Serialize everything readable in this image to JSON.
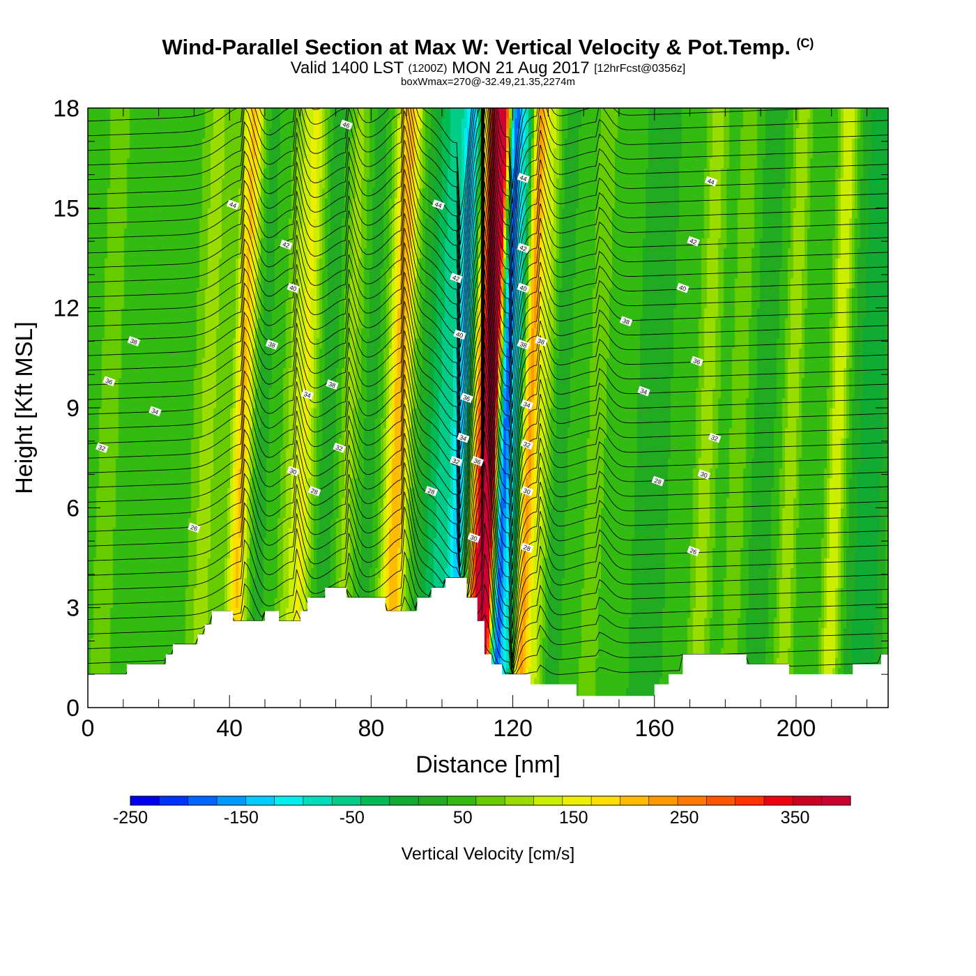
{
  "title": {
    "main": "Wind-Parallel Section at Max W: Vertical Velocity & Pot.Temp.",
    "copyright": "(C)",
    "valid_prefix": "Valid 1400 LST",
    "zulu": "(1200Z)",
    "date": "MON 21 Aug 2017",
    "forecast": "[12hrFcst@0356z]",
    "box": "boxWmax=270@-32.49,21.35,2274m"
  },
  "chart_data": {
    "type": "heatmap",
    "title": "Wind-Parallel Section at Max W: Vertical Velocity & Pot.Temp.",
    "xlabel": "Distance [nm]",
    "ylabel": "Height [Kft MSL]",
    "xlim": [
      0,
      226
    ],
    "ylim": [
      0,
      18
    ],
    "x_ticks": [
      0,
      40,
      80,
      120,
      160,
      200
    ],
    "x_tick_labels": [
      "0",
      "40",
      "80",
      "120",
      "160",
      "200"
    ],
    "y_ticks": [
      0,
      3,
      6,
      9,
      12,
      15,
      18
    ],
    "y_tick_labels": [
      "0",
      "3",
      "6",
      "9",
      "12",
      "15",
      "18"
    ],
    "colorbar": {
      "label": "Vertical Velocity [cm/s]",
      "min": -250,
      "max": 400,
      "step": 25,
      "tick_values": [
        -250,
        -150,
        -50,
        50,
        150,
        250,
        350
      ],
      "tick_labels": [
        "-250",
        "-150",
        "-50",
        "50",
        "150",
        "250",
        "350"
      ],
      "colors": [
        "#0000ee",
        "#0033ff",
        "#0066ff",
        "#0099ff",
        "#00ccff",
        "#00eeee",
        "#00ddbb",
        "#00cc88",
        "#00bb55",
        "#11aa33",
        "#22aa22",
        "#33bb11",
        "#66cc00",
        "#99dd00",
        "#ccee00",
        "#eeee00",
        "#ffdd00",
        "#ffbb00",
        "#ff9900",
        "#ff7700",
        "#ff5500",
        "#ff3300",
        "#ee0011",
        "#cc0022",
        "#cc0033"
      ]
    },
    "terrain_kft": [
      [
        0,
        1.0
      ],
      [
        11,
        1.0
      ],
      [
        11,
        1.3
      ],
      [
        22,
        1.3
      ],
      [
        22,
        1.6
      ],
      [
        24,
        1.6
      ],
      [
        24,
        1.9
      ],
      [
        31,
        1.9
      ],
      [
        31,
        2.2
      ],
      [
        33,
        2.2
      ],
      [
        33,
        2.5
      ],
      [
        35,
        2.5
      ],
      [
        35,
        2.9
      ],
      [
        41,
        2.9
      ],
      [
        41,
        2.6
      ],
      [
        50,
        2.6
      ],
      [
        50,
        2.9
      ],
      [
        54,
        2.9
      ],
      [
        54,
        2.6
      ],
      [
        60,
        2.6
      ],
      [
        60,
        2.9
      ],
      [
        62,
        2.9
      ],
      [
        62,
        3.3
      ],
      [
        67,
        3.3
      ],
      [
        67,
        3.6
      ],
      [
        73,
        3.6
      ],
      [
        73,
        3.3
      ],
      [
        84,
        3.3
      ],
      [
        84,
        2.9
      ],
      [
        93,
        2.9
      ],
      [
        93,
        3.3
      ],
      [
        97,
        3.3
      ],
      [
        97,
        3.6
      ],
      [
        101,
        3.6
      ],
      [
        101,
        3.9
      ],
      [
        107,
        3.9
      ],
      [
        107,
        3.3
      ],
      [
        110,
        3.3
      ],
      [
        110,
        2.6
      ],
      [
        112,
        2.6
      ],
      [
        112,
        1.6
      ],
      [
        114,
        1.6
      ],
      [
        114,
        1.3
      ],
      [
        117,
        1.3
      ],
      [
        117,
        1.0
      ],
      [
        125,
        1.0
      ],
      [
        125,
        0.7
      ],
      [
        138,
        0.7
      ],
      [
        138,
        0.35
      ],
      [
        160,
        0.35
      ],
      [
        160,
        0.7
      ],
      [
        164,
        0.7
      ],
      [
        164,
        1.0
      ],
      [
        168,
        1.0
      ],
      [
        168,
        1.6
      ],
      [
        186,
        1.6
      ],
      [
        186,
        1.3
      ],
      [
        198,
        1.3
      ],
      [
        198,
        1.0
      ],
      [
        216,
        1.0
      ],
      [
        216,
        1.3
      ],
      [
        224,
        1.3
      ],
      [
        224,
        1.6
      ],
      [
        226,
        1.6
      ]
    ],
    "w_bands": [
      {
        "x": 5,
        "w": 20,
        "width": 10
      },
      {
        "x": 18,
        "w": 10,
        "width": 8
      },
      {
        "x": 34,
        "w": 55,
        "width": 4
      },
      {
        "x": 44,
        "w": 150,
        "width": 3
      },
      {
        "x": 48,
        "w": -20,
        "width": 3
      },
      {
        "x": 58,
        "w": 50,
        "width": 3
      },
      {
        "x": 62,
        "w": 90,
        "width": 3
      },
      {
        "x": 68,
        "w": -20,
        "width": 4
      },
      {
        "x": 74,
        "w": 55,
        "width": 3
      },
      {
        "x": 80,
        "w": -15,
        "width": 3
      },
      {
        "x": 88,
        "w": 165,
        "width": 3.5
      },
      {
        "x": 94,
        "w": -10,
        "width": 3
      },
      {
        "x": 100,
        "w": -80,
        "width": 4
      },
      {
        "x": 106,
        "w": -170,
        "width": 3
      },
      {
        "x": 111,
        "w": 200,
        "width": 3
      },
      {
        "x": 114,
        "w": 370,
        "width": 2.2
      },
      {
        "x": 118,
        "w": -220,
        "width": 1.8
      },
      {
        "x": 121,
        "w": -110,
        "width": 1.8
      },
      {
        "x": 125,
        "w": 170,
        "width": 2.2
      },
      {
        "x": 129,
        "w": 70,
        "width": 2.5
      },
      {
        "x": 133,
        "w": -20,
        "width": 3
      },
      {
        "x": 144,
        "w": 25,
        "width": 5
      },
      {
        "x": 160,
        "w": -20,
        "width": 4
      },
      {
        "x": 175,
        "w": 60,
        "width": 3
      },
      {
        "x": 184,
        "w": 35,
        "width": 3
      },
      {
        "x": 191,
        "w": -20,
        "width": 3
      },
      {
        "x": 199,
        "w": 65,
        "width": 2.5
      },
      {
        "x": 212,
        "w": 95,
        "width": 2.5
      },
      {
        "x": 219,
        "w": -30,
        "width": 3
      },
      {
        "x": 223,
        "w": -45,
        "width": 2.5
      }
    ],
    "contour_labels": [
      {
        "x": 73,
        "y": 17.5,
        "label": "46"
      },
      {
        "x": 41,
        "y": 15.1,
        "label": "44"
      },
      {
        "x": 99,
        "y": 15.1,
        "label": "44"
      },
      {
        "x": 123,
        "y": 15.9,
        "label": "44"
      },
      {
        "x": 176,
        "y": 15.8,
        "label": "44"
      },
      {
        "x": 56,
        "y": 13.9,
        "label": "42"
      },
      {
        "x": 123,
        "y": 13.8,
        "label": "42"
      },
      {
        "x": 171,
        "y": 14.0,
        "label": "42"
      },
      {
        "x": 58,
        "y": 12.6,
        "label": "40"
      },
      {
        "x": 104,
        "y": 12.9,
        "label": "42"
      },
      {
        "x": 123,
        "y": 12.6,
        "label": "40"
      },
      {
        "x": 168,
        "y": 12.6,
        "label": "40"
      },
      {
        "x": 13,
        "y": 11.0,
        "label": "38"
      },
      {
        "x": 52,
        "y": 10.9,
        "label": "38"
      },
      {
        "x": 105,
        "y": 11.2,
        "label": "40"
      },
      {
        "x": 123,
        "y": 10.9,
        "label": "38"
      },
      {
        "x": 128,
        "y": 11.0,
        "label": "38"
      },
      {
        "x": 152,
        "y": 11.6,
        "label": "38"
      },
      {
        "x": 172,
        "y": 10.4,
        "label": "36"
      },
      {
        "x": 6,
        "y": 9.8,
        "label": "36"
      },
      {
        "x": 69,
        "y": 9.7,
        "label": "38"
      },
      {
        "x": 62,
        "y": 9.4,
        "label": "34"
      },
      {
        "x": 107,
        "y": 9.3,
        "label": "36"
      },
      {
        "x": 124,
        "y": 9.1,
        "label": "34"
      },
      {
        "x": 157,
        "y": 9.5,
        "label": "34"
      },
      {
        "x": 19,
        "y": 8.9,
        "label": "34"
      },
      {
        "x": 4,
        "y": 7.8,
        "label": "32"
      },
      {
        "x": 71,
        "y": 7.8,
        "label": "32"
      },
      {
        "x": 106,
        "y": 8.1,
        "label": "34"
      },
      {
        "x": 124,
        "y": 7.9,
        "label": "32"
      },
      {
        "x": 177,
        "y": 8.1,
        "label": "32"
      },
      {
        "x": 104,
        "y": 7.4,
        "label": "32"
      },
      {
        "x": 110,
        "y": 7.4,
        "label": "36"
      },
      {
        "x": 58,
        "y": 7.1,
        "label": "30"
      },
      {
        "x": 174,
        "y": 7.0,
        "label": "30"
      },
      {
        "x": 64,
        "y": 6.5,
        "label": "28"
      },
      {
        "x": 97,
        "y": 6.5,
        "label": "28"
      },
      {
        "x": 124,
        "y": 6.5,
        "label": "30"
      },
      {
        "x": 161,
        "y": 6.8,
        "label": "28"
      },
      {
        "x": 30,
        "y": 5.4,
        "label": "26"
      },
      {
        "x": 109,
        "y": 5.1,
        "label": "30"
      },
      {
        "x": 124,
        "y": 4.8,
        "label": "28"
      },
      {
        "x": 171,
        "y": 4.7,
        "label": "26"
      }
    ]
  }
}
